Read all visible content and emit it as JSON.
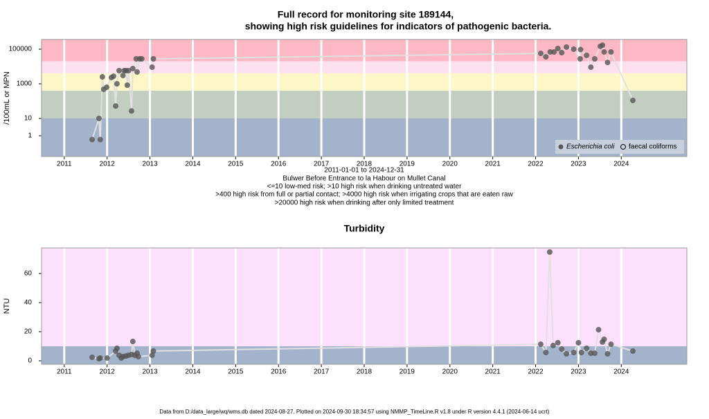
{
  "chart_data": [
    {
      "type": "scatter",
      "title": "Full record for monitoring site 189144,",
      "subtitle": "showing high risk guidelines for indicators of pathogenic bacteria.",
      "ylabel": "/100mL or MPN",
      "log_y": true,
      "grid": true,
      "x_label_lines": [
        "2011-01-01 to 2024-12-31",
        "Bulwer Before Entrance to la Habour on Mullet Canal",
        "<=10 low-med risk; >10 high risk when drinking untreated water",
        ">400 high risk from full or partial contact; >4000 high risk when irrigating crops that are eaten raw",
        ">20000 high risk when drinking after only limited treatment"
      ],
      "xlim": [
        2010.47,
        2025.53
      ],
      "xticks": [
        2011,
        2012,
        2013,
        2014,
        2015,
        2016,
        2017,
        2018,
        2019,
        2020,
        2021,
        2022,
        2023,
        2024
      ],
      "ylim": [
        0.063,
        363000
      ],
      "yticks": [
        1,
        10,
        1000,
        100000
      ],
      "thresholds": [
        10,
        400,
        4000,
        20000
      ],
      "band_colors": [
        "#a3b3cc",
        "#c2cfc0",
        "#fdf7c8",
        "#fde0f0",
        "#fdb8c6"
      ],
      "legend": {
        "position": "bottom-right",
        "entries": [
          {
            "label": "Escherichia coli",
            "marker": "filled"
          },
          {
            "label": "faecal coliforms",
            "marker": "open"
          }
        ]
      },
      "series": [
        {
          "color": "#555555",
          "line_color": "#e0e0e0",
          "x": [
            2011.65,
            2011.81,
            2011.84,
            2011.89,
            2011.92,
            2011.99,
            2012.1,
            2012.15,
            2012.2,
            2012.23,
            2012.28,
            2012.37,
            2012.4,
            2012.44,
            2012.47,
            2012.5,
            2012.57,
            2012.6,
            2012.68,
            2012.7,
            2012.76,
            2012.81,
            2013.05,
            2013.08,
            2022.12,
            2022.24,
            2022.34,
            2022.43,
            2022.52,
            2022.61,
            2022.72,
            2022.89,
            2023.04,
            2023.05,
            2023.19,
            2023.29,
            2023.38,
            2023.51,
            2023.56,
            2023.6,
            2023.68,
            2023.76,
            2024.27
          ],
          "values": [
            0.6,
            10,
            0.6,
            2500,
            480,
            630,
            2300,
            2750,
            52,
            1000,
            5750,
            3000,
            5750,
            5750,
            830,
            5750,
            27,
            7600,
            27500,
            4800,
            27500,
            27500,
            9100,
            27500,
            57000,
            36000,
            69000,
            69000,
            110000,
            63000,
            132000,
            100000,
            27500,
            95000,
            44000,
            9100,
            27500,
            145000,
            170000,
            69000,
            17000,
            69000,
            110
          ]
        }
      ]
    },
    {
      "type": "scatter",
      "title": "Turbidity",
      "ylabel": "NTU",
      "log_y": false,
      "grid": true,
      "xlim": [
        2010.47,
        2025.53
      ],
      "xticks": [
        2011,
        2012,
        2013,
        2014,
        2015,
        2016,
        2017,
        2018,
        2019,
        2020,
        2021,
        2022,
        2023,
        2024
      ],
      "ylim": [
        -2.4,
        77.6
      ],
      "yticks": [
        0,
        20,
        40,
        60
      ],
      "thresholds": [
        10
      ],
      "band_colors": [
        "#a3b3cc",
        "#fde0fd"
      ],
      "series": [
        {
          "color": "#555555",
          "line_color": "#e0e0e0",
          "x": [
            2011.65,
            2011.81,
            2011.84,
            2012.0,
            2012.2,
            2012.23,
            2012.28,
            2012.33,
            2012.37,
            2012.44,
            2012.5,
            2012.57,
            2012.6,
            2012.65,
            2012.7,
            2012.73,
            2013.05,
            2013.08,
            2022.12,
            2022.24,
            2022.33,
            2022.41,
            2022.52,
            2022.61,
            2022.72,
            2022.89,
            2023.0,
            2023.07,
            2023.19,
            2023.29,
            2023.38,
            2023.47,
            2023.56,
            2023.6,
            2023.68,
            2023.76,
            2024.27
          ],
          "values": [
            2.4,
            1.4,
            1.9,
            1.9,
            6.7,
            8.6,
            3.8,
            1.9,
            2.9,
            3.3,
            3.8,
            4.3,
            13.3,
            3.8,
            5.2,
            2.9,
            3.8,
            6.7,
            11.4,
            5.7,
            74.8,
            10.5,
            12.4,
            8.1,
            4.8,
            5.7,
            12.4,
            5.7,
            8.6,
            5.2,
            5.2,
            21.4,
            12.9,
            14.8,
            4.8,
            11.4,
            6.7
          ]
        }
      ]
    }
  ],
  "footer": "Data from D:/data_large/wq/wms.db dated 2024-08-27. Plotted on 2024-09-30 18:34:57 using NMMP_TimeLine.R v1.8 under R version 4.4.1 (2024-06-14 ucrt)"
}
